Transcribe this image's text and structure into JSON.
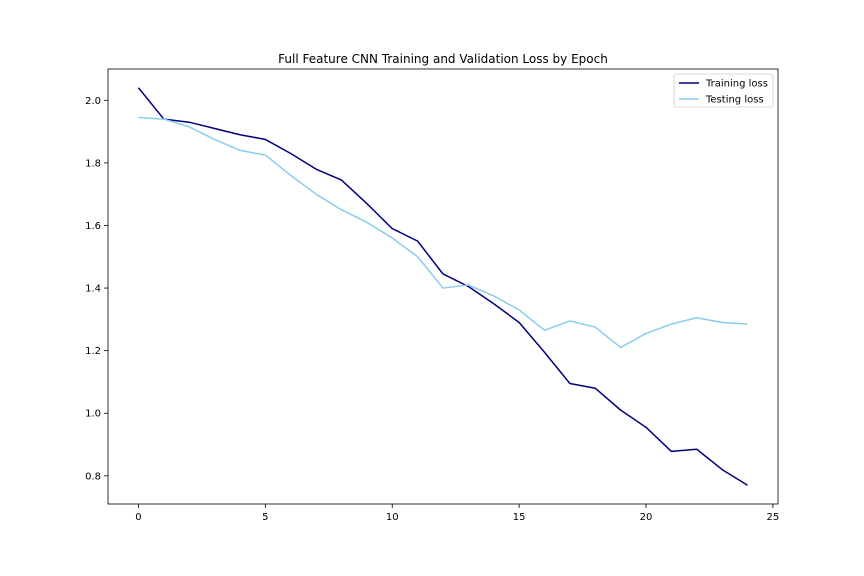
{
  "chart_data": {
    "type": "line",
    "title": "Full Feature CNN Training and Validation Loss by Epoch",
    "xlabel": "",
    "ylabel": "",
    "xlim": [
      -1.2,
      25.2
    ],
    "ylim": [
      0.71,
      2.1
    ],
    "xticks": [
      0,
      5,
      10,
      15,
      20,
      25
    ],
    "xtick_labels": [
      "0",
      "5",
      "10",
      "15",
      "20",
      "25"
    ],
    "yticks": [
      0.8,
      1.0,
      1.2,
      1.4,
      1.6,
      1.8,
      2.0
    ],
    "ytick_labels": [
      "0.8",
      "1.0",
      "1.2",
      "1.4",
      "1.6",
      "1.8",
      "2.0"
    ],
    "grid": false,
    "legend_position": "top-right",
    "x": [
      0,
      1,
      2,
      3,
      4,
      5,
      6,
      7,
      8,
      9,
      10,
      11,
      12,
      13,
      14,
      15,
      16,
      17,
      18,
      19,
      20,
      21,
      22,
      23,
      24
    ],
    "series": [
      {
        "name": "Training loss",
        "color": "#000080",
        "values": [
          2.04,
          1.94,
          1.93,
          1.91,
          1.89,
          1.875,
          1.83,
          1.78,
          1.745,
          1.67,
          1.59,
          1.55,
          1.445,
          1.405,
          1.35,
          1.29,
          1.195,
          1.095,
          1.08,
          1.01,
          0.955,
          0.878,
          0.885,
          0.82,
          0.77
        ]
      },
      {
        "name": "Testing loss",
        "color": "#87CEEB",
        "values": [
          1.945,
          1.94,
          1.915,
          1.875,
          1.84,
          1.825,
          1.76,
          1.7,
          1.65,
          1.61,
          1.56,
          1.5,
          1.4,
          1.41,
          1.375,
          1.33,
          1.265,
          1.295,
          1.275,
          1.21,
          1.255,
          1.285,
          1.305,
          1.29,
          1.285
        ]
      }
    ]
  }
}
